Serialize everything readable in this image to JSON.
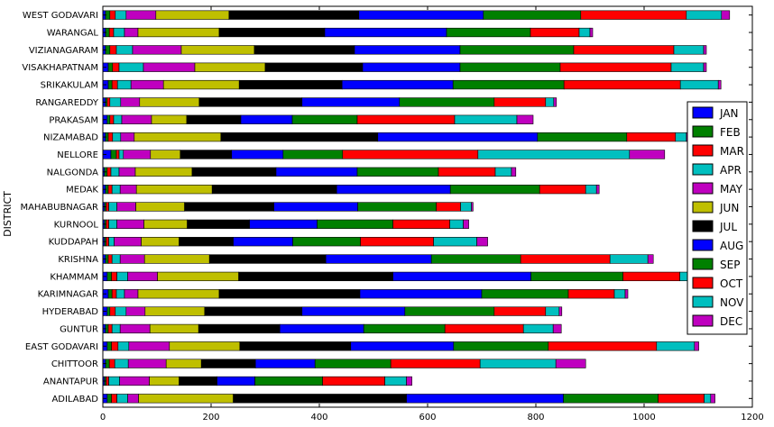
{
  "chart_data": {
    "type": "bar",
    "orientation": "horizontal",
    "stacked": true,
    "ylabel": "DISTRICT",
    "xlim": [
      0,
      1200
    ],
    "xticks": [
      0,
      200,
      400,
      600,
      800,
      1000,
      1200
    ],
    "grid": false,
    "legend_position": "right",
    "categories": [
      "ADILABAD",
      "ANANTAPUR",
      "CHITTOOR",
      "EAST GODAVARI",
      "GUNTUR",
      "HYDERABAD",
      "KARIMNAGAR",
      "KHAMMAM",
      "KRISHNA",
      "KUDDAPAH",
      "KURNOOL",
      "MAHABUBNAGAR",
      "MEDAK",
      "NALGONDA",
      "NELLORE",
      "NIZAMABAD",
      "PRAKASAM",
      "RANGAREDDY",
      "SRIKAKULAM",
      "VISAKHAPATNAM",
      "VIZIANAGARAM",
      "WARANGAL",
      "WEST GODAVARI"
    ],
    "series": [
      {
        "name": "JAN",
        "color": "#0000ff",
        "values": [
          8,
          3,
          5,
          8,
          5,
          8,
          10,
          8,
          5,
          3,
          3,
          3,
          5,
          3,
          15,
          5,
          8,
          5,
          10,
          10,
          5,
          5,
          5
        ]
      },
      {
        "name": "FEB",
        "color": "#008000",
        "values": [
          8,
          3,
          7,
          8,
          5,
          5,
          7,
          8,
          5,
          3,
          3,
          3,
          5,
          5,
          10,
          5,
          5,
          3,
          7,
          8,
          8,
          7,
          8
        ]
      },
      {
        "name": "MAR",
        "color": "#ff0000",
        "values": [
          10,
          5,
          10,
          12,
          7,
          10,
          8,
          10,
          7,
          5,
          5,
          5,
          7,
          7,
          5,
          8,
          7,
          5,
          10,
          12,
          12,
          8,
          10
        ]
      },
      {
        "name": "APR",
        "color": "#00bfbf",
        "values": [
          20,
          20,
          25,
          20,
          15,
          20,
          15,
          20,
          15,
          10,
          15,
          15,
          15,
          15,
          8,
          15,
          15,
          20,
          25,
          45,
          30,
          20,
          20
        ]
      },
      {
        "name": "MAY",
        "color": "#bf00bf",
        "values": [
          20,
          55,
          70,
          75,
          55,
          35,
          25,
          55,
          45,
          50,
          50,
          35,
          30,
          30,
          50,
          25,
          55,
          35,
          60,
          95,
          90,
          25,
          55
        ]
      },
      {
        "name": "JUN",
        "color": "#bfbf00",
        "values": [
          175,
          55,
          65,
          130,
          90,
          110,
          150,
          150,
          120,
          70,
          80,
          90,
          140,
          105,
          55,
          160,
          65,
          110,
          140,
          130,
          135,
          150,
          135
        ]
      },
      {
        "name": "JUL",
        "color": "#000000",
        "values": [
          320,
          70,
          100,
          205,
          150,
          180,
          260,
          285,
          215,
          100,
          115,
          165,
          230,
          155,
          95,
          290,
          100,
          190,
          190,
          180,
          185,
          195,
          240
        ]
      },
      {
        "name": "AUG",
        "color": "#0000ff",
        "values": [
          290,
          70,
          110,
          190,
          155,
          190,
          225,
          255,
          195,
          110,
          125,
          155,
          210,
          150,
          95,
          295,
          95,
          180,
          205,
          180,
          195,
          225,
          230
        ]
      },
      {
        "name": "SEP",
        "color": "#008000",
        "values": [
          175,
          125,
          140,
          175,
          150,
          165,
          160,
          170,
          165,
          125,
          140,
          145,
          165,
          150,
          110,
          165,
          120,
          175,
          205,
          185,
          210,
          155,
          180
        ]
      },
      {
        "name": "OCT",
        "color": "#ff0000",
        "values": [
          85,
          115,
          165,
          200,
          145,
          95,
          85,
          105,
          165,
          135,
          105,
          45,
          85,
          105,
          250,
          90,
          180,
          95,
          215,
          205,
          185,
          90,
          195
        ]
      },
      {
        "name": "NOV",
        "color": "#00bfbf",
        "values": [
          12,
          40,
          140,
          70,
          55,
          25,
          20,
          20,
          70,
          80,
          25,
          20,
          20,
          30,
          280,
          20,
          115,
          15,
          70,
          60,
          55,
          20,
          65
        ]
      },
      {
        "name": "DEC",
        "color": "#bf00bf",
        "values": [
          8,
          10,
          55,
          8,
          15,
          5,
          5,
          10,
          10,
          20,
          10,
          3,
          5,
          8,
          65,
          5,
          30,
          5,
          5,
          5,
          5,
          5,
          15
        ]
      }
    ]
  }
}
